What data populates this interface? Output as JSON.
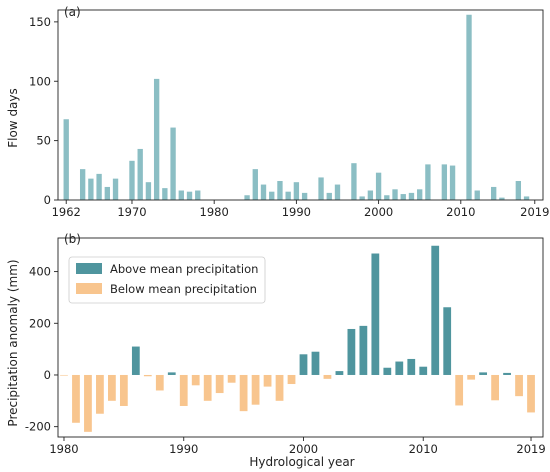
{
  "chart_data": [
    {
      "panel_label": "(a)",
      "type": "bar",
      "ylabel": "Flow days",
      "xlabel": "",
      "xlim": [
        1961,
        2020
      ],
      "ylim": [
        0,
        160
      ],
      "xticks": [
        1962,
        1970,
        1980,
        1990,
        2000,
        2010,
        2019
      ],
      "yticks": [
        0,
        50,
        100,
        150
      ],
      "color": "#8bbec4",
      "x": [
        1962,
        1963,
        1964,
        1965,
        1966,
        1967,
        1968,
        1969,
        1970,
        1971,
        1972,
        1973,
        1974,
        1975,
        1976,
        1977,
        1978,
        1979,
        1980,
        1981,
        1982,
        1983,
        1984,
        1985,
        1986,
        1987,
        1988,
        1989,
        1990,
        1991,
        1992,
        1993,
        1994,
        1995,
        1996,
        1997,
        1998,
        1999,
        2000,
        2001,
        2002,
        2003,
        2004,
        2005,
        2006,
        2007,
        2008,
        2009,
        2010,
        2011,
        2012,
        2013,
        2014,
        2015,
        2016,
        2017,
        2018,
        2019
      ],
      "values": [
        68,
        0,
        26,
        18,
        22,
        11,
        18,
        0,
        33,
        43,
        15,
        102,
        10,
        61,
        8,
        7,
        8,
        0,
        0,
        0,
        0,
        0,
        4,
        26,
        13,
        7,
        16,
        7,
        15,
        6,
        0,
        19,
        6,
        13,
        0,
        31,
        3,
        8,
        23,
        4,
        9,
        5,
        6,
        9,
        30,
        0,
        30,
        29,
        0,
        156,
        8,
        0,
        11,
        2,
        0,
        16,
        3,
        0
      ]
    },
    {
      "panel_label": "(b)",
      "type": "bar",
      "ylabel": "Precipitation anomaly (mm)",
      "xlabel": "Hydrological year",
      "xlim": [
        1979.5,
        2020
      ],
      "ylim": [
        -240,
        530
      ],
      "xticks": [
        1980,
        1990,
        2000,
        2010,
        2019
      ],
      "yticks": [
        -200,
        0,
        200,
        400
      ],
      "legend_position": "top-left",
      "series": [
        {
          "name": "Above mean precipitation",
          "color": "#4f959e"
        },
        {
          "name": "Below mean precipitation",
          "color": "#f8c58e"
        }
      ],
      "x": [
        1980,
        1981,
        1982,
        1983,
        1984,
        1985,
        1986,
        1987,
        1988,
        1989,
        1990,
        1991,
        1992,
        1993,
        1994,
        1995,
        1996,
        1997,
        1998,
        1999,
        2000,
        2001,
        2002,
        2003,
        2004,
        2005,
        2006,
        2007,
        2008,
        2009,
        2010,
        2011,
        2012,
        2013,
        2014,
        2015,
        2016,
        2017,
        2018,
        2019
      ],
      "values": [
        -2,
        -185,
        -220,
        -150,
        -100,
        -120,
        110,
        -5,
        -60,
        10,
        -120,
        -40,
        -100,
        -70,
        -30,
        -140,
        -115,
        -45,
        -100,
        -35,
        80,
        90,
        -15,
        15,
        178,
        190,
        470,
        28,
        52,
        62,
        32,
        500,
        262,
        -118,
        -18,
        10,
        -98,
        8,
        -82,
        -145
      ]
    }
  ]
}
